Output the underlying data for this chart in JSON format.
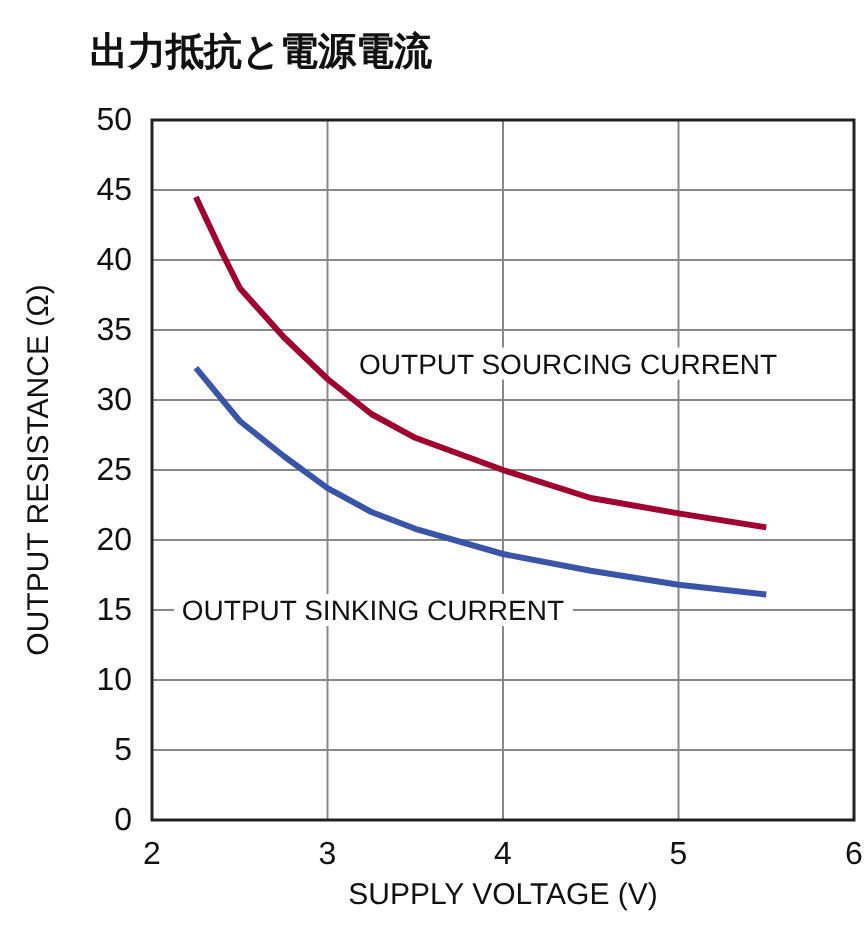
{
  "chart_data": {
    "type": "line",
    "title": "出力抵抗と電源電流",
    "xlabel": "SUPPLY VOLTAGE (V)",
    "ylabel": "OUTPUT RESISTANCE (Ω)",
    "series": [
      {
        "name": "OUTPUT SOURCING CURRENT",
        "color": "#a00030",
        "x": [
          2.25,
          2.4,
          2.5,
          2.75,
          3,
          3.25,
          3.5,
          4,
          4.5,
          5,
          5.5
        ],
        "values": [
          44.5,
          40.5,
          38,
          34.5,
          31.5,
          29,
          27.3,
          25,
          23,
          21.9,
          20.9
        ]
      },
      {
        "name": "OUTPUT SINKING CURRENT",
        "color": "#3a55a8",
        "x": [
          2.25,
          2.5,
          2.75,
          3,
          3.25,
          3.5,
          4,
          4.5,
          5,
          5.5
        ],
        "values": [
          32.3,
          28.5,
          26,
          23.7,
          22,
          20.8,
          19,
          17.8,
          16.8,
          16.1
        ]
      }
    ],
    "xlim": [
      2,
      6
    ],
    "xticks": [
      2,
      3,
      4,
      5,
      6
    ],
    "ylim": [
      0,
      50
    ],
    "yticks": [
      0,
      5,
      10,
      15,
      20,
      25,
      30,
      35,
      40,
      45,
      50
    ],
    "grid": true,
    "marker": "none",
    "line_style": "solid"
  }
}
